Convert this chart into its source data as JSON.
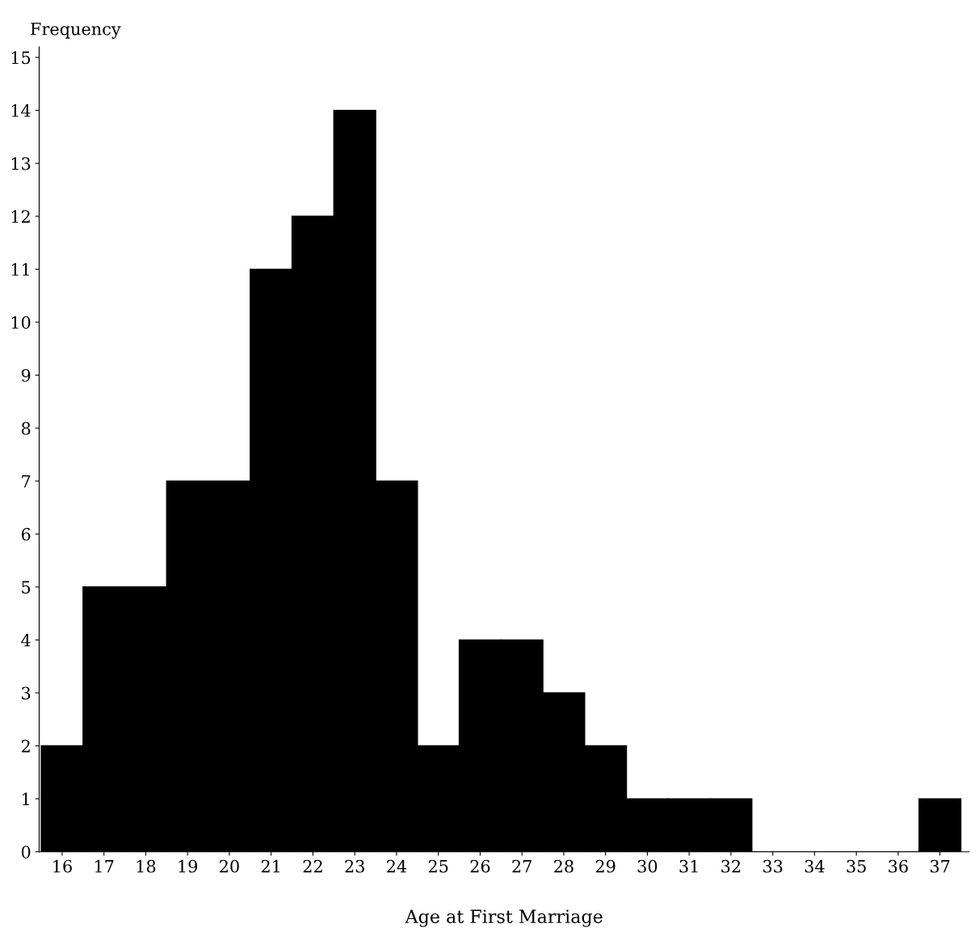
{
  "chart_data": {
    "type": "bar",
    "xlabel": "Age at First Marriage",
    "ylabel": "Frequency",
    "categories": [
      "16",
      "17",
      "18",
      "19",
      "20",
      "21",
      "22",
      "23",
      "24",
      "25",
      "26",
      "27",
      "28",
      "29",
      "30",
      "31",
      "32",
      "33",
      "34",
      "35",
      "36",
      "37"
    ],
    "values": [
      2,
      5,
      5,
      7,
      7,
      11,
      12,
      14,
      7,
      2,
      4,
      4,
      3,
      2,
      1,
      1,
      1,
      0,
      0,
      0,
      0,
      1
    ],
    "color": "#000000",
    "ylim": [
      0,
      15.2
    ],
    "yticks": [
      0,
      1,
      2,
      3,
      4,
      5,
      6,
      7,
      8,
      9,
      10,
      11,
      12,
      13,
      14,
      15
    ],
    "grid": false
  }
}
